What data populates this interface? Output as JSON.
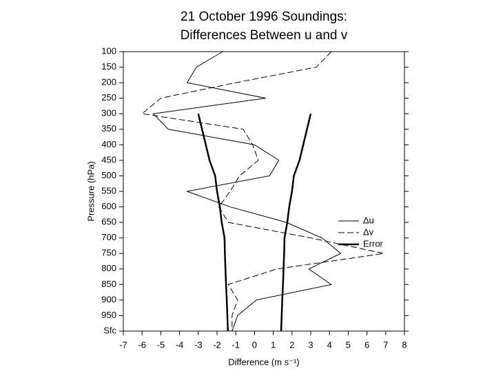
{
  "chart_data": {
    "type": "profile",
    "title": [
      "21 October 1996 Soundings:",
      "Differences Between u and v"
    ],
    "xlabel": "Difference (m s⁻¹)",
    "ylabel": "Pressure (hPa)",
    "xlim": [
      -7,
      8
    ],
    "xticks": [
      -7,
      -6,
      -5,
      -4,
      -3,
      -2,
      -1,
      0,
      1,
      2,
      3,
      4,
      5,
      6,
      7,
      8
    ],
    "ylim": [
      1000,
      100
    ],
    "yticks": [
      100,
      150,
      200,
      250,
      300,
      350,
      400,
      450,
      500,
      550,
      600,
      650,
      700,
      750,
      800,
      850,
      900,
      950,
      {
        "value": 1000,
        "label": "Sfc"
      }
    ],
    "y": [
      100,
      150,
      200,
      250,
      300,
      350,
      400,
      450,
      500,
      550,
      600,
      650,
      700,
      750,
      800,
      850,
      900,
      950,
      1000
    ],
    "series": [
      {
        "name": "Δu",
        "color": "#000",
        "style": "solid",
        "values": [
          -1.7,
          -3.1,
          -3.6,
          0.6,
          -5.4,
          -4.6,
          0.0,
          1.3,
          0.8,
          -3.6,
          -1.3,
          1.7,
          3.6,
          4.6,
          2.9,
          4.1,
          0.1,
          -0.9,
          -1.2
        ]
      },
      {
        "name": "Δv",
        "color": "#000",
        "style": "dashed",
        "values": [
          4.1,
          3.3,
          -1.0,
          -5.0,
          -6.0,
          -0.6,
          -0.1,
          0.2,
          -0.8,
          -1.3,
          -1.9,
          -1.4,
          3.0,
          6.9,
          1.2,
          -1.4,
          -0.9,
          -1.2,
          -1.2
        ]
      },
      {
        "name": "Error",
        "color": "#000",
        "style": "thick",
        "symmetric": true,
        "values": [
          null,
          null,
          null,
          null,
          3.0,
          2.8,
          2.6,
          2.4,
          2.1,
          2.0,
          1.85,
          1.75,
          1.6,
          1.58,
          1.55,
          1.52,
          1.48,
          1.45,
          1.42
        ]
      }
    ]
  }
}
